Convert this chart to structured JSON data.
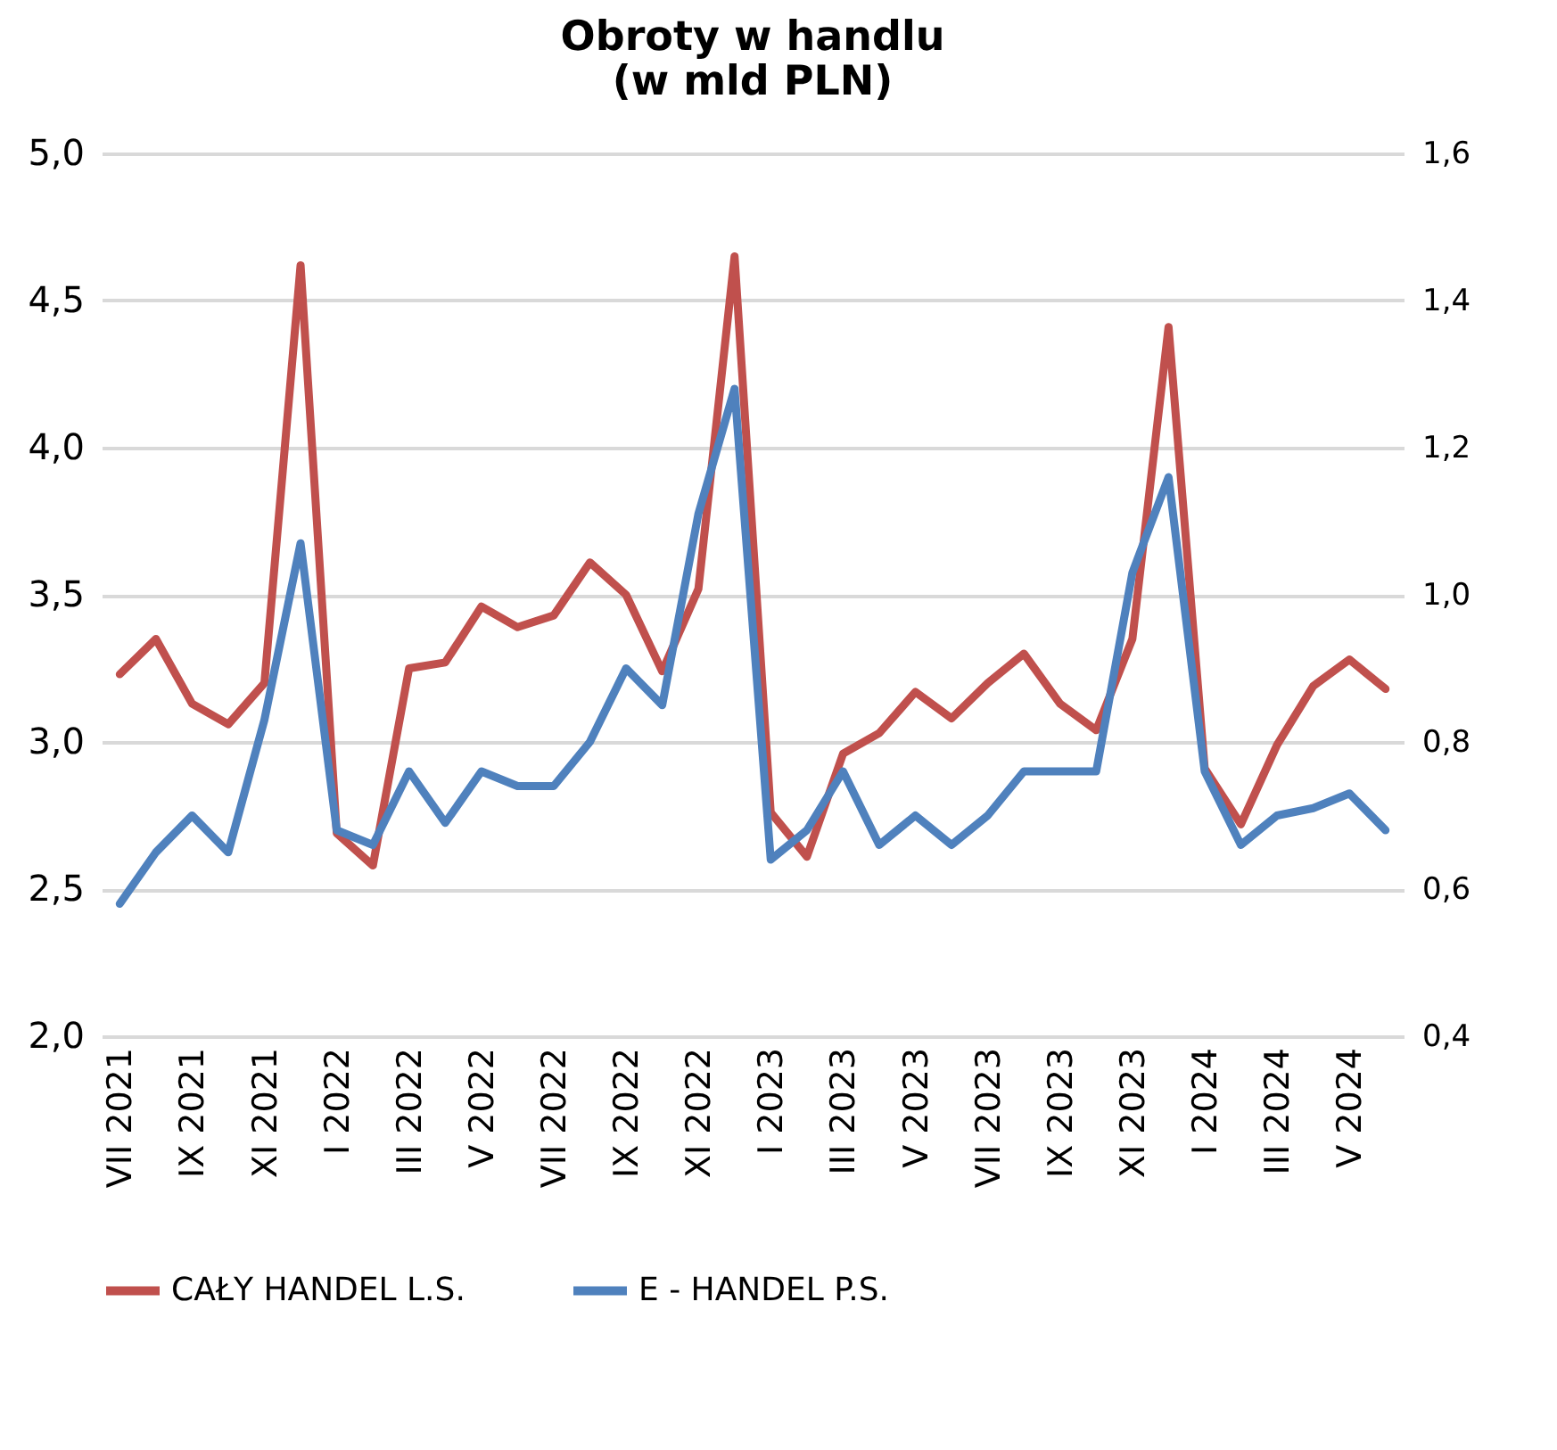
{
  "chart_data": {
    "type": "line",
    "title": [
      "Obroty w handlu",
      "(w mld PLN)"
    ],
    "categories": [
      "VII 2021",
      null,
      "IX 2021",
      null,
      "XI 2021",
      null,
      "I 2022",
      null,
      "III 2022",
      null,
      "V 2022",
      null,
      "VII 2022",
      null,
      "IX 2022",
      null,
      "XI 2022",
      null,
      "I 2023",
      null,
      "III 2023",
      null,
      "V 2023",
      null,
      "VII 2023",
      null,
      "IX 2023",
      null,
      "XI 2023",
      null,
      "I 2024",
      null,
      "III 2024",
      null,
      "V 2024",
      null
    ],
    "series": [
      {
        "name": "CAŁY HANDEL L.S.",
        "color": "#c0504d",
        "values": [
          3.23,
          3.35,
          3.13,
          3.06,
          3.2,
          4.62,
          2.69,
          2.58,
          3.25,
          3.27,
          3.46,
          3.39,
          3.43,
          3.61,
          3.5,
          3.24,
          3.52,
          4.65,
          2.76,
          2.61,
          2.96,
          3.03,
          3.17,
          3.08,
          3.2,
          3.3,
          3.13,
          3.04,
          3.35,
          4.41,
          2.91,
          2.72,
          2.99,
          3.19,
          3.28,
          3.18
        ]
      },
      {
        "name": "E - HANDEL P.S.",
        "color": "#4f81bd",
        "axis": "y2",
        "values": [
          0.58,
          0.65,
          0.7,
          0.65,
          0.83,
          1.07,
          0.68,
          0.66,
          0.76,
          0.69,
          0.76,
          0.74,
          0.74,
          0.8,
          0.9,
          0.85,
          1.11,
          1.28,
          0.64,
          0.68,
          0.76,
          0.66,
          0.7,
          0.66,
          0.7,
          0.76,
          0.76,
          0.76,
          1.03,
          1.16,
          0.76,
          0.66,
          0.7,
          0.71,
          0.73,
          0.68
        ]
      }
    ],
    "ylim": [
      2,
      5
    ],
    "yticks": [
      {
        "value": 2,
        "label": "2,0"
      },
      {
        "value": 2.5,
        "label": "2,5"
      },
      {
        "value": 3,
        "label": "3,0"
      },
      {
        "value": 3.5,
        "label": "3,5"
      },
      {
        "value": 4,
        "label": "4,0"
      },
      {
        "value": 4.5,
        "label": "4,5"
      },
      {
        "value": 5,
        "label": "5,0"
      }
    ],
    "y2lim": [
      0.4,
      1.6
    ],
    "y2ticks": [
      {
        "value": 0.4,
        "label": "0,4"
      },
      {
        "value": 0.6,
        "label": "0,6"
      },
      {
        "value": 0.8,
        "label": "0,8"
      },
      {
        "value": 1,
        "label": "1,0"
      },
      {
        "value": 1.2,
        "label": "1,2"
      },
      {
        "value": 1.4,
        "label": "1,4"
      },
      {
        "value": 1.6,
        "label": "1,6"
      }
    ],
    "grid": "y",
    "legend": "bottom",
    "marker": "none",
    "line_style": "solid"
  }
}
